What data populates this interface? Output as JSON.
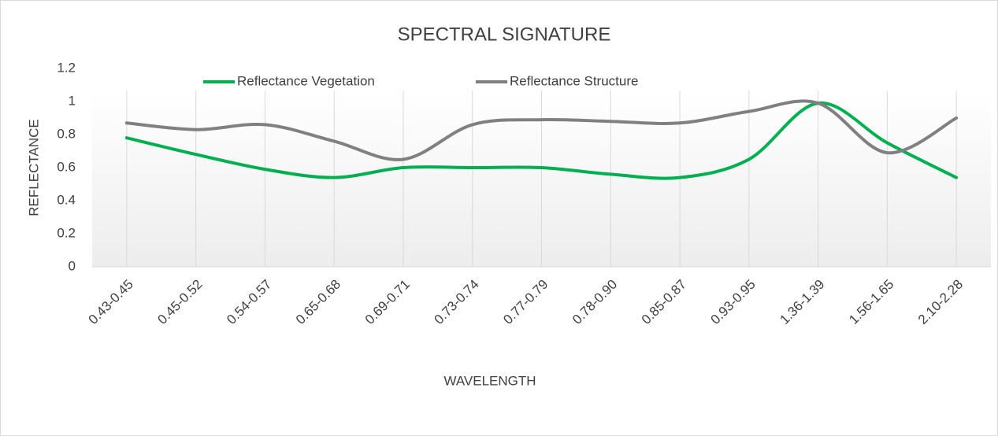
{
  "chart_data": {
    "type": "line",
    "title": "SPECTRAL SIGNATURE",
    "x_label": "WAVELENGTH",
    "y_label": "REFLECTANCE",
    "categories": [
      "0.43-0.45",
      "0.45-0.52",
      "0.54-0.57",
      "0.65-0.68",
      "0.69-0.71",
      "0.73-0.74",
      "0.77-0.79",
      "0.78-0.90",
      "0.85-0.87",
      "0.93-0.95",
      "1.36-1.39",
      "1.56-1.65",
      "2.10-2.28"
    ],
    "series": [
      {
        "name": "Reflectance Vegetation",
        "color": "#00b050",
        "values": [
          0.78,
          0.68,
          0.59,
          0.54,
          0.6,
          0.6,
          0.6,
          0.56,
          0.54,
          0.65,
          0.99,
          0.75,
          0.54
        ]
      },
      {
        "name": "Reflectance Structure",
        "color": "#808080",
        "values": [
          0.87,
          0.83,
          0.86,
          0.76,
          0.65,
          0.86,
          0.89,
          0.88,
          0.87,
          0.94,
          0.99,
          0.69,
          0.9
        ]
      }
    ],
    "ylim": [
      0,
      1.2
    ],
    "yticks": [
      0,
      0.2,
      0.4,
      0.6,
      0.8,
      1,
      1.2
    ],
    "grid": true,
    "smooth": true,
    "legend": "top"
  }
}
